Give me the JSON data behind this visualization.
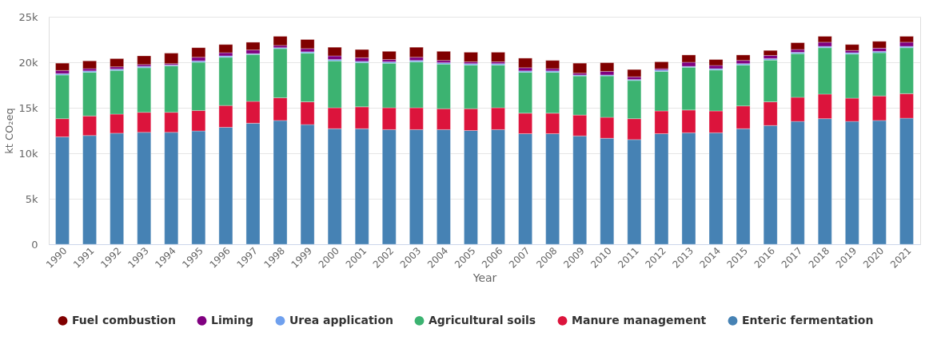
{
  "chart_data": {
    "type": "bar",
    "stacked": true,
    "xlabel": "Year",
    "ylabel": "kt CO₂eq",
    "categories": [
      "1990",
      "1991",
      "1992",
      "1993",
      "1994",
      "1995",
      "1996",
      "1997",
      "1998",
      "1999",
      "2000",
      "2001",
      "2002",
      "2003",
      "2004",
      "2005",
      "2006",
      "2007",
      "2008",
      "2009",
      "2010",
      "2011",
      "2012",
      "2013",
      "2014",
      "2015",
      "2016",
      "2017",
      "2018",
      "2019",
      "2020",
      "2021"
    ],
    "series": [
      {
        "name": "Enteric fermentation",
        "color": "#4682b4",
        "values": [
          11800,
          11950,
          12200,
          12300,
          12300,
          12450,
          12850,
          13300,
          13600,
          13150,
          12700,
          12700,
          12600,
          12600,
          12600,
          12500,
          12600,
          12150,
          12150,
          11900,
          11650,
          11500,
          12150,
          12250,
          12250,
          12700,
          13050,
          13500,
          13800,
          13500,
          13600,
          13850
        ]
      },
      {
        "name": "Manure management",
        "color": "#dc143c",
        "values": [
          2000,
          2150,
          2100,
          2200,
          2200,
          2250,
          2400,
          2400,
          2500,
          2500,
          2300,
          2400,
          2400,
          2400,
          2300,
          2400,
          2400,
          2250,
          2250,
          2300,
          2300,
          2300,
          2500,
          2500,
          2400,
          2500,
          2600,
          2650,
          2700,
          2550,
          2700,
          2700
        ]
      },
      {
        "name": "Agricultural soils",
        "color": "#3cb371",
        "values": [
          4800,
          4800,
          4800,
          4900,
          5100,
          5300,
          5300,
          5150,
          5400,
          5350,
          5150,
          4850,
          4900,
          5050,
          4900,
          4800,
          4700,
          4500,
          4500,
          4300,
          4550,
          4200,
          4350,
          4700,
          4500,
          4500,
          4600,
          4800,
          5100,
          4850,
          4750,
          5050
        ]
      },
      {
        "name": "Urea application",
        "color": "#6fa0ee",
        "values": [
          150,
          150,
          150,
          150,
          100,
          150,
          150,
          100,
          100,
          150,
          150,
          150,
          150,
          150,
          150,
          150,
          150,
          150,
          150,
          100,
          100,
          100,
          150,
          100,
          150,
          150,
          150,
          150,
          150,
          150,
          150,
          150
        ]
      },
      {
        "name": "Liming",
        "color": "#800080",
        "values": [
          350,
          250,
          250,
          200,
          150,
          400,
          350,
          400,
          250,
          350,
          400,
          400,
          250,
          350,
          250,
          200,
          200,
          350,
          250,
          200,
          400,
          300,
          150,
          450,
          350,
          350,
          350,
          300,
          450,
          250,
          350,
          450
        ]
      },
      {
        "name": "Fuel combustion",
        "color": "#800000",
        "values": [
          800,
          850,
          900,
          950,
          1150,
          1050,
          900,
          850,
          1000,
          1000,
          950,
          900,
          900,
          1100,
          1000,
          1050,
          1050,
          1050,
          900,
          1100,
          950,
          800,
          750,
          800,
          650,
          600,
          550,
          750,
          650,
          650,
          750,
          650
        ]
      }
    ],
    "ylim": [
      0,
      25000
    ],
    "yticks": [
      {
        "value": 0,
        "label": "0"
      },
      {
        "value": 5000,
        "label": "5k"
      },
      {
        "value": 10000,
        "label": "10k"
      },
      {
        "value": 15000,
        "label": "15k"
      },
      {
        "value": 20000,
        "label": "20k"
      },
      {
        "value": 25000,
        "label": "25k"
      }
    ],
    "grid": "y",
    "legend": "bottom"
  }
}
